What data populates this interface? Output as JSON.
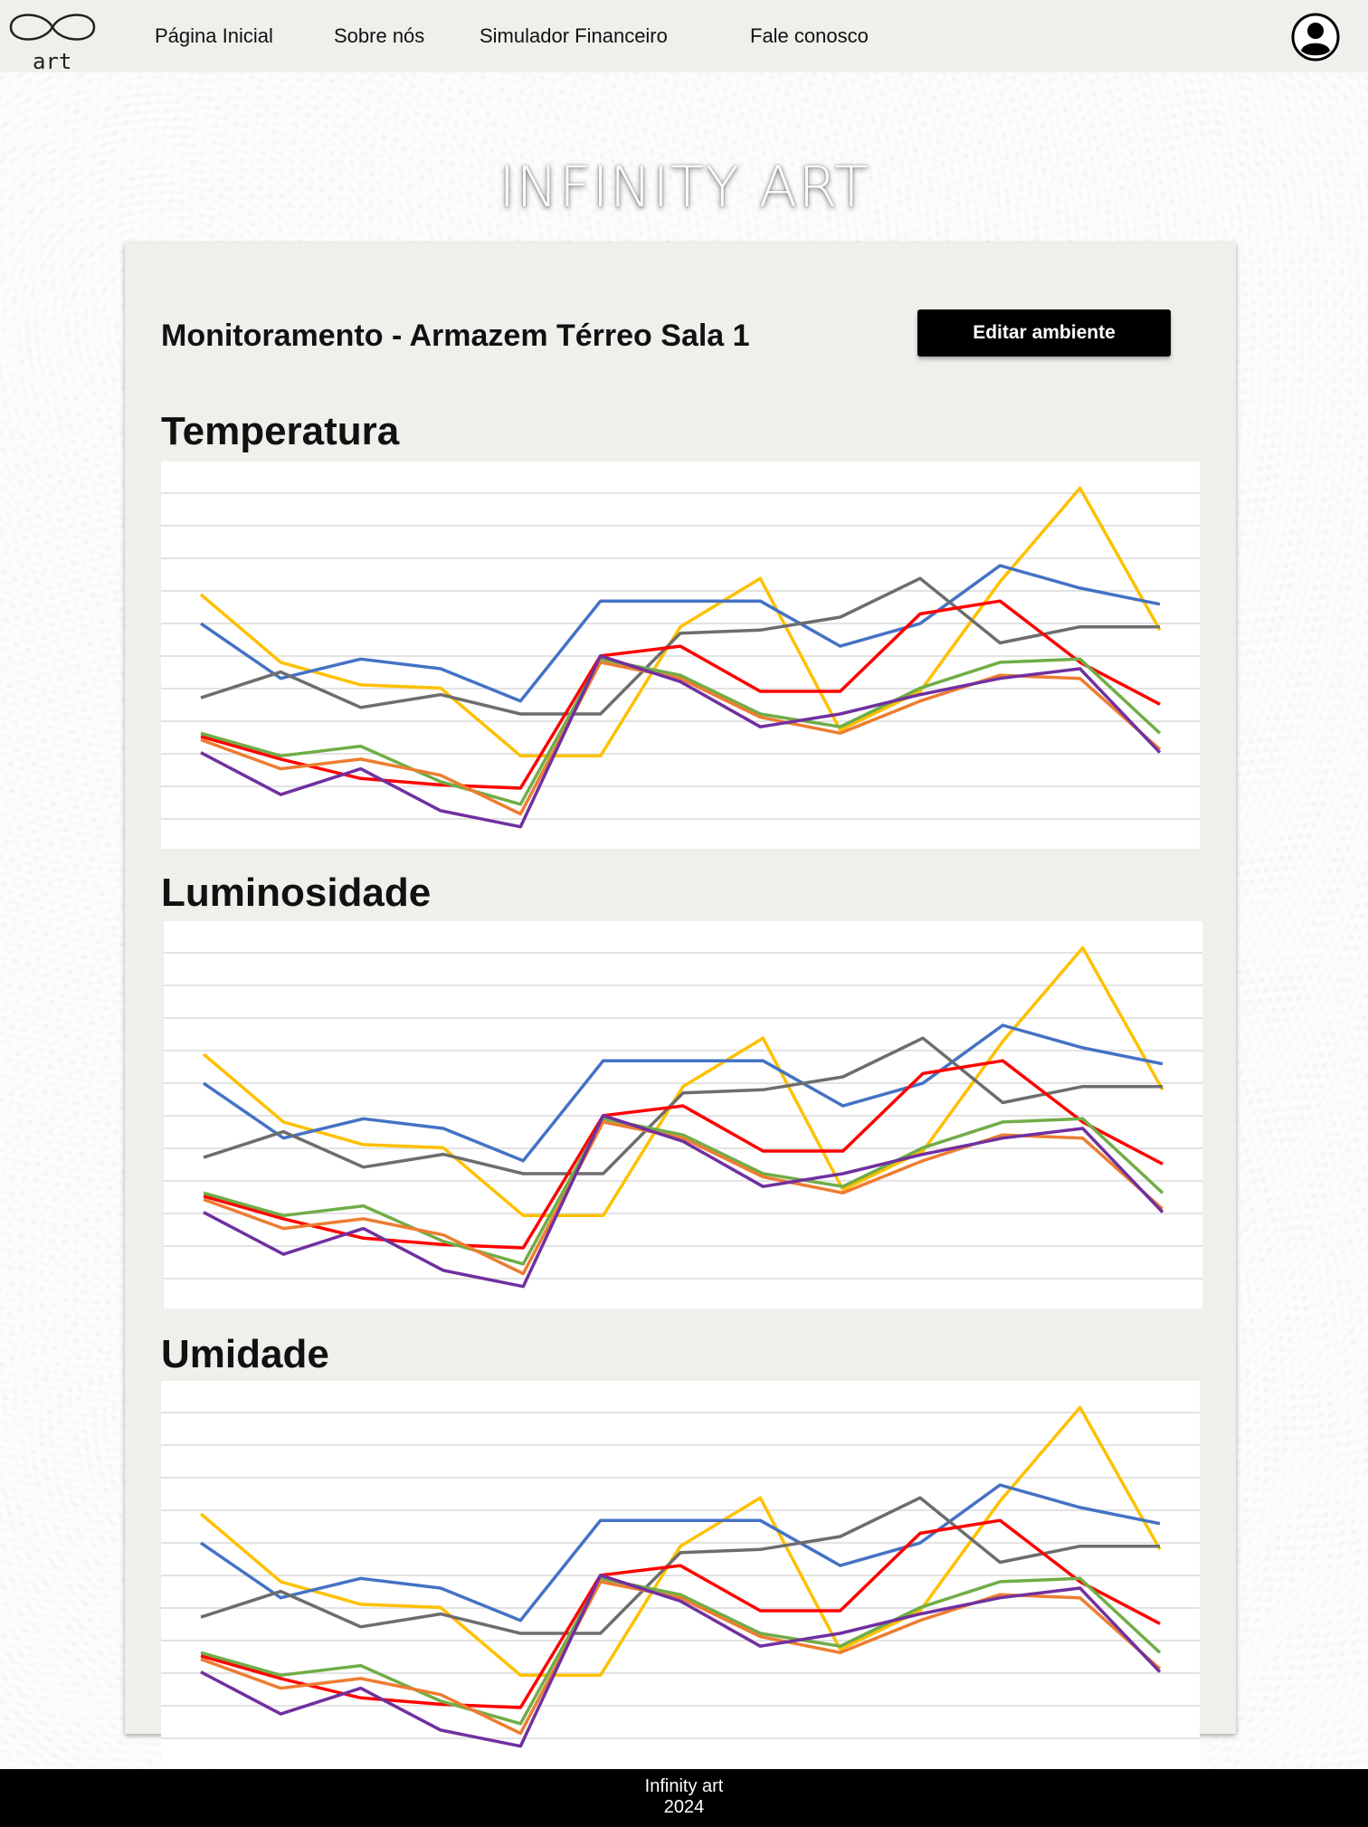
{
  "brand": {
    "logo_text": "art"
  },
  "nav": {
    "items": [
      "Página Inicial",
      "Sobre nós",
      "Simulador Financeiro",
      "Fale conosco"
    ]
  },
  "hero": {
    "title": "INFINITY ART"
  },
  "panel": {
    "title": "Monitoramento - Armazem Térreo Sala 1",
    "edit_button": "Editar ambiente"
  },
  "sections": [
    {
      "title": "Temperatura"
    },
    {
      "title": "Luminosidade"
    },
    {
      "title": "Umidade"
    }
  ],
  "footer": {
    "line1": "Infinity art",
    "line2": "2024"
  },
  "chart_data": [
    {
      "type": "line",
      "title": "Temperatura",
      "x": [
        1,
        2,
        3,
        4,
        5,
        6,
        7,
        8,
        9,
        10,
        11,
        12,
        13
      ],
      "ylim": [
        0,
        11.5
      ],
      "grid": true,
      "series": [
        {
          "color": "#ffc000",
          "values": [
            7.6,
            5.5,
            4.8,
            4.7,
            2.6,
            2.6,
            6.6,
            8.1,
            3.4,
            4.6,
            8.0,
            10.9,
            6.5
          ]
        },
        {
          "color": "#4472c4",
          "values": [
            6.7,
            5.0,
            5.6,
            5.3,
            4.3,
            7.4,
            7.4,
            7.4,
            6.0,
            6.7,
            8.5,
            7.8,
            7.3
          ]
        },
        {
          "color": "#6d6d6d",
          "values": [
            4.4,
            5.2,
            4.1,
            4.5,
            3.9,
            3.9,
            6.4,
            6.5,
            6.9,
            8.1,
            6.1,
            6.6,
            6.6
          ]
        },
        {
          "color": "#ff0000",
          "values": [
            3.2,
            2.5,
            1.9,
            1.7,
            1.6,
            5.7,
            6.0,
            4.6,
            4.6,
            7.0,
            7.4,
            5.5,
            4.2
          ]
        },
        {
          "color": "#70ad47",
          "values": [
            3.3,
            2.6,
            2.9,
            1.8,
            1.1,
            5.6,
            5.1,
            3.9,
            3.5,
            4.7,
            5.5,
            5.6,
            3.3
          ]
        },
        {
          "color": "#ed7d31",
          "values": [
            3.1,
            2.2,
            2.5,
            2.0,
            0.8,
            5.5,
            5.0,
            3.8,
            3.3,
            4.3,
            5.1,
            5.0,
            2.8
          ]
        },
        {
          "color": "#7030a0",
          "values": [
            2.7,
            1.4,
            2.2,
            0.9,
            0.4,
            5.7,
            4.9,
            3.5,
            3.9,
            4.5,
            5.0,
            5.3,
            2.7
          ]
        }
      ]
    },
    {
      "type": "line",
      "title": "Luminosidade",
      "x": [
        1,
        2,
        3,
        4,
        5,
        6,
        7,
        8,
        9,
        10,
        11,
        12,
        13
      ],
      "ylim": [
        0,
        11.5
      ],
      "grid": true,
      "series": [
        {
          "color": "#ffc000",
          "values": [
            7.6,
            5.5,
            4.8,
            4.7,
            2.6,
            2.6,
            6.6,
            8.1,
            3.4,
            4.6,
            8.0,
            10.9,
            6.5
          ]
        },
        {
          "color": "#4472c4",
          "values": [
            6.7,
            5.0,
            5.6,
            5.3,
            4.3,
            7.4,
            7.4,
            7.4,
            6.0,
            6.7,
            8.5,
            7.8,
            7.3
          ]
        },
        {
          "color": "#6d6d6d",
          "values": [
            4.4,
            5.2,
            4.1,
            4.5,
            3.9,
            3.9,
            6.4,
            6.5,
            6.9,
            8.1,
            6.1,
            6.6,
            6.6
          ]
        },
        {
          "color": "#ff0000",
          "values": [
            3.2,
            2.5,
            1.9,
            1.7,
            1.6,
            5.7,
            6.0,
            4.6,
            4.6,
            7.0,
            7.4,
            5.5,
            4.2
          ]
        },
        {
          "color": "#70ad47",
          "values": [
            3.3,
            2.6,
            2.9,
            1.8,
            1.1,
            5.6,
            5.1,
            3.9,
            3.5,
            4.7,
            5.5,
            5.6,
            3.3
          ]
        },
        {
          "color": "#ed7d31",
          "values": [
            3.1,
            2.2,
            2.5,
            2.0,
            0.8,
            5.5,
            5.0,
            3.8,
            3.3,
            4.3,
            5.1,
            5.0,
            2.8
          ]
        },
        {
          "color": "#7030a0",
          "values": [
            2.7,
            1.4,
            2.2,
            0.9,
            0.4,
            5.7,
            4.9,
            3.5,
            3.9,
            4.5,
            5.0,
            5.3,
            2.7
          ]
        }
      ]
    },
    {
      "type": "line",
      "title": "Umidade",
      "x": [
        1,
        2,
        3,
        4,
        5,
        6,
        7,
        8,
        9,
        10,
        11,
        12,
        13
      ],
      "ylim": [
        0,
        11.5
      ],
      "grid": true,
      "series": [
        {
          "color": "#ffc000",
          "values": [
            7.6,
            5.5,
            4.8,
            4.7,
            2.6,
            2.6,
            6.6,
            8.1,
            3.4,
            4.6,
            8.0,
            10.9,
            6.5
          ]
        },
        {
          "color": "#4472c4",
          "values": [
            6.7,
            5.0,
            5.6,
            5.3,
            4.3,
            7.4,
            7.4,
            7.4,
            6.0,
            6.7,
            8.5,
            7.8,
            7.3
          ]
        },
        {
          "color": "#6d6d6d",
          "values": [
            4.4,
            5.2,
            4.1,
            4.5,
            3.9,
            3.9,
            6.4,
            6.5,
            6.9,
            8.1,
            6.1,
            6.6,
            6.6
          ]
        },
        {
          "color": "#ff0000",
          "values": [
            3.2,
            2.5,
            1.9,
            1.7,
            1.6,
            5.7,
            6.0,
            4.6,
            4.6,
            7.0,
            7.4,
            5.5,
            4.2
          ]
        },
        {
          "color": "#70ad47",
          "values": [
            3.3,
            2.6,
            2.9,
            1.8,
            1.1,
            5.6,
            5.1,
            3.9,
            3.5,
            4.7,
            5.5,
            5.6,
            3.3
          ]
        },
        {
          "color": "#ed7d31",
          "values": [
            3.1,
            2.2,
            2.5,
            2.0,
            0.8,
            5.5,
            5.0,
            3.8,
            3.3,
            4.3,
            5.1,
            5.0,
            2.8
          ]
        },
        {
          "color": "#7030a0",
          "values": [
            2.7,
            1.4,
            2.2,
            0.9,
            0.4,
            5.7,
            4.9,
            3.5,
            3.9,
            4.5,
            5.0,
            5.3,
            2.7
          ]
        }
      ]
    }
  ]
}
